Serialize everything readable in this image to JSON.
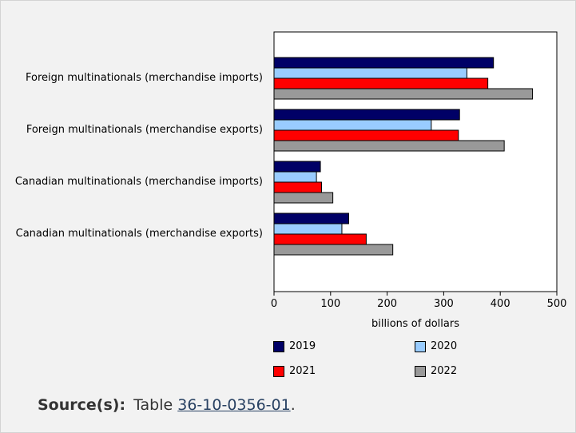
{
  "chart_data": {
    "type": "bar",
    "orientation": "horizontal",
    "title": "",
    "xlabel": "billions of dollars",
    "ylabel": "",
    "xlim": [
      0,
      500
    ],
    "xticks": [
      "0",
      "100",
      "200",
      "300",
      "400",
      "500"
    ],
    "grid": false,
    "legend_placement": "bottom",
    "categories": [
      "Foreign multinationals (merchandise imports)",
      "Foreign multinationals (merchandise exports)",
      "Canadian multinationals (merchandise imports)",
      "Canadian multinationals (merchandise exports)"
    ],
    "series": [
      {
        "name": "2019",
        "color": "#000066",
        "values": [
          388,
          328,
          82,
          132
        ]
      },
      {
        "name": "2020",
        "color": "#99ccff",
        "values": [
          341,
          278,
          75,
          120
        ]
      },
      {
        "name": "2021",
        "color": "#ff0000",
        "values": [
          378,
          326,
          84,
          163
        ]
      },
      {
        "name": "2022",
        "color": "#999999",
        "values": [
          457,
          407,
          104,
          210
        ]
      }
    ]
  },
  "source": {
    "label": "Source(s):",
    "text": "Table",
    "link_text": "36-10-0356-01",
    "suffix": "."
  }
}
